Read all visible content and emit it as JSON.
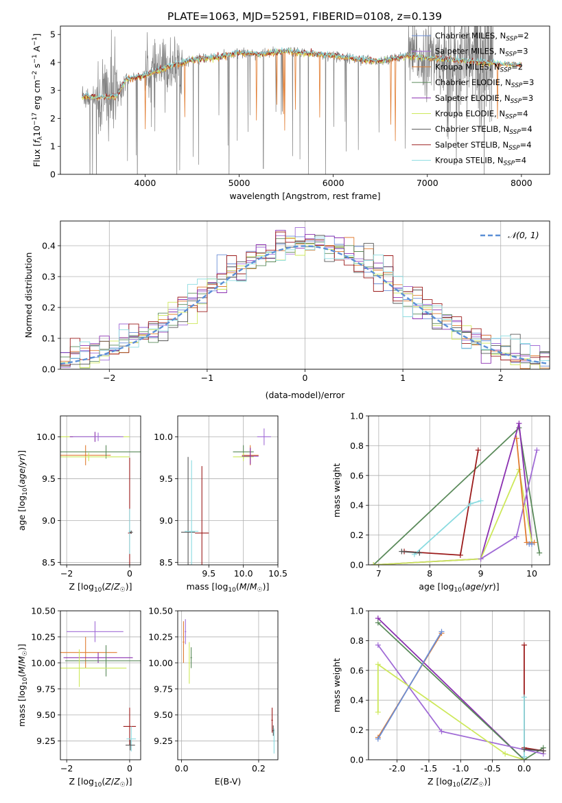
{
  "figure_title": "PLATE=1063, MJD=52591, FIBERID=0108, z=0.139",
  "colors": {
    "Chabrier MILES": "#6b8ed6",
    "Salpeter MILES": "#a06bd6",
    "Kroupa MILES": "#e07b2f",
    "Chabrier ELODIE": "#5a8a5a",
    "Salpeter ELODIE": "#8a2fb0",
    "Kroupa ELODIE": "#cde85a",
    "Chabrier STELIB": "#555555",
    "Salpeter STELIB": "#9b1a1a",
    "Kroupa STELIB": "#8adbe0",
    "data": "#808080",
    "normal": "#5b8fd6"
  },
  "chart_data": [
    {
      "id": "spectrum",
      "type": "line",
      "xlabel": "wavelength [Angstrom, rest frame]",
      "ylabel_parts": [
        "Flux [",
        "f",
        "λ",
        "10",
        "−17",
        " erg cm",
        "−2",
        " s",
        "−1",
        " A",
        "−1",
        "]"
      ],
      "xlim": [
        3100,
        8300
      ],
      "ylim": [
        0,
        5.3
      ],
      "xticks": [
        4000,
        5000,
        6000,
        7000,
        8000
      ],
      "yticks": [
        0,
        1,
        2,
        3,
        4,
        5
      ],
      "legend_placement": "upper-right",
      "legend": [
        {
          "name": "Chabrier MILES, N",
          "sub": "SSP",
          "n": "=2"
        },
        {
          "name": "Salpeter MILES, N",
          "sub": "SSP",
          "n": "=3"
        },
        {
          "name": "Kroupa MILES, N",
          "sub": "SSP",
          "n": "=2"
        },
        {
          "name": "Chabrier ELODIE, N",
          "sub": "SSP",
          "n": "=3"
        },
        {
          "name": "Salpeter ELODIE, N",
          "sub": "SSP",
          "n": "=3"
        },
        {
          "name": "Kroupa ELODIE, N",
          "sub": "SSP",
          "n": "=4"
        },
        {
          "name": "Chabrier STELIB, N",
          "sub": "SSP",
          "n": "=4"
        },
        {
          "name": "Salpeter STELIB, N",
          "sub": "SSP",
          "n": "=4"
        },
        {
          "name": "Kroupa STELIB, N",
          "sub": "SSP",
          "n": "=4"
        }
      ],
      "continuum": {
        "x": [
          3330,
          3500,
          3700,
          3800,
          4000,
          4200,
          4500,
          4800,
          5000,
          5200,
          5500,
          5800,
          6000,
          6300,
          6500,
          6800,
          7000,
          7300,
          7600,
          8000
        ],
        "y": [
          2.8,
          2.75,
          2.8,
          3.4,
          3.55,
          3.8,
          4.1,
          4.2,
          4.35,
          4.3,
          4.4,
          4.3,
          4.25,
          4.1,
          4.05,
          4.25,
          4.15,
          4.1,
          4.0,
          3.9
        ]
      }
    },
    {
      "id": "residuals",
      "type": "line",
      "xlabel": "(data-model)/error",
      "ylabel": "Normed distribution",
      "xlim": [
        -2.5,
        2.5
      ],
      "ylim": [
        0,
        0.48
      ],
      "xticks": [
        -2,
        -1,
        0,
        1,
        2
      ],
      "yticks": [
        0.0,
        0.1,
        0.2,
        0.3,
        0.4
      ],
      "legend_placement": "upper-right",
      "normal_label": "𝒩(0, 1)",
      "bin_width": 0.1
    },
    {
      "id": "Z-age",
      "type": "scatter",
      "xlabel": "Z [log10(Z/Z☉)]",
      "ylabel": "age  [log10(age/yr)]",
      "xlim": [
        -2.2,
        0.35
      ],
      "ylim": [
        8.47,
        10.25
      ],
      "xticks": [
        -2,
        0
      ],
      "yticks": [
        8.5,
        9.0,
        9.5,
        10.0
      ],
      "points": [
        {
          "model": "Kroupa ELODIE",
          "x": -1.1,
          "y": 10.0,
          "xerr": 1.1,
          "yerr": 0.05
        },
        {
          "model": "Salpeter ELODIE",
          "x": -1.1,
          "y": 10.0,
          "xerr": 0.8,
          "yerr": 0.06
        },
        {
          "model": "Salpeter MILES",
          "x": -1.0,
          "y": 10.0,
          "xerr": 0.8,
          "yerr": 0.05
        },
        {
          "model": "Kroupa MILES",
          "x": -1.4,
          "y": 9.78,
          "xerr": 0.8,
          "yerr": 0.12
        },
        {
          "model": "Chabrier ELODIE",
          "x": -0.75,
          "y": 9.82,
          "xerr": 2.0,
          "yerr": 0.08
        },
        {
          "model": "Kroupa ELODIE",
          "x": -1.3,
          "y": 9.76,
          "xerr": 1.3,
          "yerr": 0.05
        },
        {
          "model": "Salpeter STELIB",
          "x": 0.0,
          "y": 8.85,
          "xerr": 0.05,
          "yerr": 0.9
        },
        {
          "model": "Kroupa STELIB",
          "x": 0.0,
          "y": 8.87,
          "xerr": 0.03,
          "yerr": 0.27
        },
        {
          "model": "Chabrier STELIB",
          "x": 0.05,
          "y": 8.86,
          "xerr": 0.05,
          "yerr": 0.02
        }
      ]
    },
    {
      "id": "mass-age",
      "type": "scatter",
      "xlabel": "mass [log10(M/M☉)]",
      "ylabel": "",
      "xlim": [
        9.05,
        10.5
      ],
      "ylim": [
        8.47,
        10.25
      ],
      "xticks": [
        9.5,
        10.0,
        10.5
      ],
      "yticks": [
        8.5,
        9.0,
        9.5,
        10.0
      ],
      "points": [
        {
          "model": "Salpeter MILES",
          "x": 10.3,
          "y": 10.0,
          "xerr": 0.1,
          "yerr": 0.1
        },
        {
          "model": "Kroupa MILES",
          "x": 10.1,
          "y": 9.78,
          "xerr": 0.12,
          "yerr": 0.12
        },
        {
          "model": "Chabrier ELODIE",
          "x": 10.0,
          "y": 9.82,
          "xerr": 0.15,
          "yerr": 0.08
        },
        {
          "model": "Kroupa ELODIE",
          "x": 10.0,
          "y": 9.76,
          "xerr": 0.15,
          "yerr": 0.05
        },
        {
          "model": "Salpeter ELODIE",
          "x": 10.1,
          "y": 9.77,
          "xerr": 0.12,
          "yerr": 0.1
        },
        {
          "model": "Chabrier STELIB",
          "x": 9.2,
          "y": 8.86,
          "xerr": 0.1,
          "yerr": 0.9
        },
        {
          "model": "Kroupa STELIB",
          "x": 9.25,
          "y": 8.87,
          "xerr": 0.1,
          "yerr": 0.85
        },
        {
          "model": "Salpeter STELIB",
          "x": 9.4,
          "y": 8.85,
          "xerr": 0.1,
          "yerr": 0.8
        }
      ]
    },
    {
      "id": "age-weight",
      "type": "line",
      "xlabel": "age  [log10(age/yr)]",
      "ylabel": "mass weight",
      "xlim": [
        6.8,
        10.35
      ],
      "ylim": [
        0,
        1.0
      ],
      "xticks": [
        7,
        8,
        9,
        10
      ],
      "yticks": [
        0.0,
        0.2,
        0.4,
        0.6,
        0.8,
        1.0
      ],
      "series": [
        {
          "model": "Chabrier ELODIE",
          "x": [
            6.9,
            9.75,
            10.15
          ],
          "y": [
            0.0,
            0.92,
            0.08
          ]
        },
        {
          "model": "Salpeter ELODIE",
          "x": [
            6.9,
            9.0,
            9.75,
            10.0
          ],
          "y": [
            0.0,
            0.04,
            0.95,
            0.15
          ]
        },
        {
          "model": "Kroupa ELODIE",
          "x": [
            6.9,
            9.0,
            9.75,
            10.0
          ],
          "y": [
            0.0,
            0.04,
            0.64,
            0.15
          ]
        },
        {
          "model": "Salpeter MILES",
          "x": [
            9.0,
            9.7,
            10.1
          ],
          "y": [
            0.04,
            0.19,
            0.77
          ]
        },
        {
          "model": "Kroupa MILES",
          "x": [
            9.7,
            9.9,
            10.05
          ],
          "y": [
            0.85,
            0.15,
            0.15
          ]
        },
        {
          "model": "Salpeter STELIB",
          "x": [
            7.5,
            8.6,
            8.95
          ],
          "y": [
            0.09,
            0.065,
            0.77
          ]
        },
        {
          "model": "Kroupa STELIB",
          "x": [
            7.7,
            8.8,
            9.0
          ],
          "y": [
            0.07,
            0.41,
            0.43
          ]
        },
        {
          "model": "Chabrier STELIB",
          "x": [
            7.45,
            7.8
          ],
          "y": [
            0.09,
            0.08
          ]
        },
        {
          "model": "Chabrier MILES",
          "x": [
            9.95,
            10.0
          ],
          "y": [
            0.14,
            0.14
          ]
        }
      ]
    },
    {
      "id": "Z-mass",
      "type": "scatter",
      "xlabel": "Z [log10(Z/Z☉)]",
      "ylabel": "mass [log10(M/M☉)]",
      "xlim": [
        -2.2,
        0.35
      ],
      "ylim": [
        9.07,
        10.5
      ],
      "xticks": [
        -2,
        0
      ],
      "yticks": [
        9.25,
        9.5,
        9.75,
        10.0,
        10.25,
        10.5
      ],
      "points": [
        {
          "model": "Salpeter MILES",
          "x": -1.1,
          "y": 10.3,
          "xerr": 0.9,
          "yerr": 0.1
        },
        {
          "model": "Kroupa MILES",
          "x": -1.4,
          "y": 10.1,
          "xerr": 1.0,
          "yerr": 0.15
        },
        {
          "model": "Salpeter ELODIE",
          "x": -1.0,
          "y": 10.05,
          "xerr": 1.1,
          "yerr": 0.05
        },
        {
          "model": "Chabrier ELODIE",
          "x": -0.75,
          "y": 10.02,
          "xerr": 1.3,
          "yerr": 0.15
        },
        {
          "model": "Kroupa ELODIE",
          "x": -1.6,
          "y": 9.95,
          "xerr": 1.5,
          "yerr": 0.18
        },
        {
          "model": "Salpeter STELIB",
          "x": 0.0,
          "y": 9.39,
          "xerr": 0.2,
          "yerr": 0.18
        },
        {
          "model": "Kroupa STELIB",
          "x": 0.05,
          "y": 9.27,
          "xerr": 0.15,
          "yerr": 0.12
        },
        {
          "model": "Chabrier STELIB",
          "x": 0.02,
          "y": 9.21,
          "xerr": 0.15,
          "yerr": 0.05
        }
      ]
    },
    {
      "id": "ebv-mass",
      "type": "scatter",
      "xlabel": "E(B-V)",
      "ylabel": "",
      "xlim": [
        -0.01,
        0.25
      ],
      "ylim": [
        9.07,
        10.5
      ],
      "xticks": [
        0.0,
        0.2
      ],
      "yticks": [
        9.25,
        9.5,
        9.75,
        10.0,
        10.25,
        10.5
      ],
      "points": [
        {
          "model": "Kroupa MILES",
          "x": 0.005,
          "y": 10.2,
          "xerr": 0.002,
          "yerr": 0.2
        },
        {
          "model": "Salpeter MILES",
          "x": 0.01,
          "y": 10.3,
          "xerr": 0.002,
          "yerr": 0.12
        },
        {
          "model": "Kroupa ELODIE",
          "x": 0.02,
          "y": 10.0,
          "xerr": 0.002,
          "yerr": 0.2
        },
        {
          "model": "Chabrier ELODIE",
          "x": 0.025,
          "y": 10.05,
          "xerr": 0.002,
          "yerr": 0.1
        },
        {
          "model": "Salpeter STELIB",
          "x": 0.235,
          "y": 9.45,
          "xerr": 0.002,
          "yerr": 0.12
        },
        {
          "model": "Kroupa STELIB",
          "x": 0.24,
          "y": 9.25,
          "xerr": 0.002,
          "yerr": 0.12
        },
        {
          "model": "Chabrier STELIB",
          "x": 0.238,
          "y": 9.35,
          "xerr": 0.002,
          "yerr": 0.05
        }
      ]
    },
    {
      "id": "Z-weight",
      "type": "line",
      "xlabel": "Z [log10(Z/Z☉)]",
      "ylabel": "mass weight",
      "xlim": [
        -2.45,
        0.4
      ],
      "ylim": [
        0,
        1.0
      ],
      "xticks": [
        -2.0,
        -1.5,
        -1.0,
        -0.5,
        0.0
      ],
      "yticks": [
        0.0,
        0.2,
        0.4,
        0.6,
        0.8,
        1.0
      ],
      "series": [
        {
          "model": "Salpeter ELODIE",
          "x": [
            -2.3,
            0.0
          ],
          "y": [
            0.95,
            0.0
          ]
        },
        {
          "model": "Chabrier ELODIE",
          "x": [
            -2.3,
            0.0,
            0.3
          ],
          "y": [
            0.92,
            0.0,
            0.08
          ]
        },
        {
          "model": "Salpeter MILES",
          "x": [
            -2.3,
            -1.3,
            0.3
          ],
          "y": [
            0.77,
            0.19,
            0.04
          ]
        },
        {
          "model": "Kroupa ELODIE",
          "x": [
            -2.3,
            -2.3,
            -0.3,
            0.0
          ],
          "y": [
            0.32,
            0.64,
            0.04,
            0.0
          ]
        },
        {
          "model": "Kroupa MILES",
          "x": [
            -2.3,
            -1.3
          ],
          "y": [
            0.15,
            0.85
          ]
        },
        {
          "model": "Chabrier MILES",
          "x": [
            -2.3,
            -1.3
          ],
          "y": [
            0.14,
            0.86
          ]
        },
        {
          "model": "Salpeter STELIB",
          "x": [
            0.0,
            0.0,
            0.3
          ],
          "y": [
            0.77,
            0.08,
            0.06
          ]
        },
        {
          "model": "Kroupa STELIB",
          "x": [
            0.0,
            0.0
          ],
          "y": [
            0.42,
            0.02
          ]
        },
        {
          "model": "Chabrier STELIB",
          "x": [
            0.0,
            0.3
          ],
          "y": [
            0.07,
            0.06
          ]
        }
      ]
    }
  ]
}
